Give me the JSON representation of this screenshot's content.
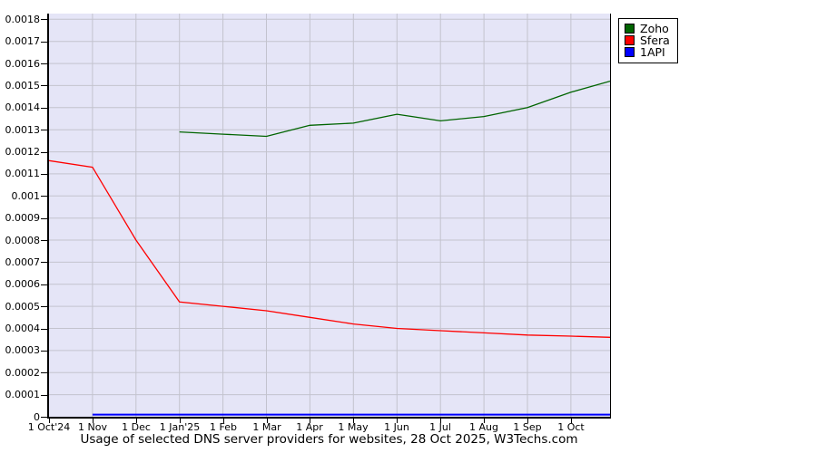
{
  "title": "Usage of selected DNS server providers for websites, 28 Oct 2025, W3Techs.com",
  "colors": {
    "page_bg": "#ffffff",
    "plot_bg": "#e5e5f7",
    "grid": "#c3c3ce",
    "axis": "#000000",
    "zoho_green": "#006400",
    "sfera_red": "#ff0000",
    "oneapi_blue": "#0000ff"
  },
  "legend": {
    "items": [
      {
        "label": "Zoho",
        "color": "#006400"
      },
      {
        "label": "Sfera",
        "color": "#ff0000"
      },
      {
        "label": "1API",
        "color": "#0000ff"
      }
    ]
  },
  "chart_data": {
    "type": "line",
    "title": "Usage of selected DNS server providers for websites, 28 Oct 2025, W3Techs.com",
    "xlabel": "",
    "ylabel": "",
    "grid": true,
    "legend_position": "outside-top-right",
    "xlim": [
      0,
      12.9
    ],
    "ylim": [
      0,
      0.001826
    ],
    "x_tick_labels": [
      "1 Oct'24",
      "1 Nov",
      "1 Dec",
      "1 Jan'25",
      "1 Feb",
      "1 Mar",
      "1 Apr",
      "1 May",
      "1 Jun",
      "1 Jul",
      "1 Aug",
      "1 Sep",
      "1 Oct"
    ],
    "y_ticks": [
      {
        "value": 0,
        "label": "0"
      },
      {
        "value": 0.0001,
        "label": "0.0001"
      },
      {
        "value": 0.0002,
        "label": "0.0002"
      },
      {
        "value": 0.0003,
        "label": "0.0003"
      },
      {
        "value": 0.0004,
        "label": "0.0004"
      },
      {
        "value": 0.0005,
        "label": "0.0005"
      },
      {
        "value": 0.0006,
        "label": "0.0006"
      },
      {
        "value": 0.0007,
        "label": "0.0007"
      },
      {
        "value": 0.0008,
        "label": "0.0008"
      },
      {
        "value": 0.0009,
        "label": "0.0009"
      },
      {
        "value": 0.001,
        "label": "0.001"
      },
      {
        "value": 0.0011,
        "label": "0.0011"
      },
      {
        "value": 0.0012,
        "label": "0.0012"
      },
      {
        "value": 0.0013,
        "label": "0.0013"
      },
      {
        "value": 0.0014,
        "label": "0.0014"
      },
      {
        "value": 0.0015,
        "label": "0.0015"
      },
      {
        "value": 0.0016,
        "label": "0.0016"
      },
      {
        "value": 0.0017,
        "label": "0.0017"
      },
      {
        "value": 0.0018,
        "label": "0.0018"
      }
    ],
    "series": [
      {
        "name": "Zoho",
        "color": "#006400",
        "stroke_width": 1.3,
        "x": [
          3,
          4,
          5,
          6,
          7,
          8,
          9,
          10,
          11,
          12,
          12.9
        ],
        "values": [
          0.00129,
          0.00128,
          0.00127,
          0.00132,
          0.00133,
          0.00137,
          0.00134,
          0.00136,
          0.0014,
          0.00147,
          0.00152
        ]
      },
      {
        "name": "Sfera",
        "color": "#ff0000",
        "stroke_width": 1.3,
        "x": [
          0,
          1,
          2,
          3,
          4,
          5,
          6,
          7,
          8,
          9,
          10,
          11,
          12,
          12.9
        ],
        "values": [
          0.00116,
          0.00113,
          0.0008,
          0.00052,
          0.0005,
          0.00048,
          0.00045,
          0.00042,
          0.0004,
          0.00039,
          0.00038,
          0.00037,
          0.000365,
          0.00036
        ]
      },
      {
        "name": "1API",
        "color": "#0000ff",
        "stroke_width": 2,
        "x": [
          1,
          2,
          3,
          4,
          5,
          6,
          7,
          8,
          9,
          10,
          11,
          12,
          12.9
        ],
        "values": [
          1e-05,
          1e-05,
          1e-05,
          1e-05,
          1e-05,
          1e-05,
          1e-05,
          1e-05,
          1e-05,
          1e-05,
          1e-05,
          1e-05,
          1e-05
        ]
      }
    ]
  }
}
